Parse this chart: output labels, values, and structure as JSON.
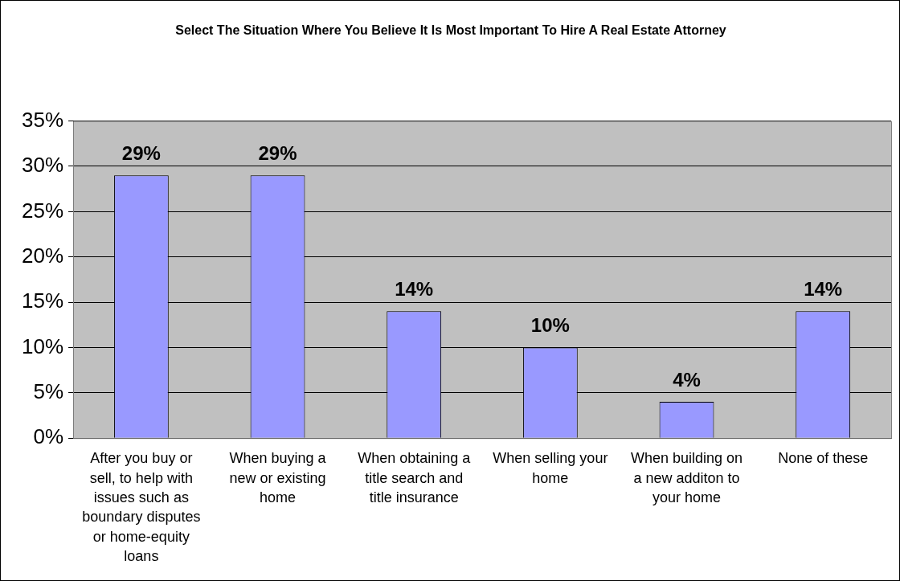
{
  "chart_data": {
    "type": "bar",
    "title": "Select The Situation Where You Believe It Is Most Important To Hire A Real Estate Attorney",
    "categories": [
      "After you buy or sell, to help with issues such as boundary disputes or home-equity loans",
      "When buying a new or existing home",
      "When obtaining a title search and title insurance",
      "When selling your home",
      "When building on a new additon to your home",
      "None of these"
    ],
    "values": [
      29,
      29,
      14,
      10,
      4,
      14
    ],
    "value_labels": [
      "29%",
      "29%",
      "14%",
      "10%",
      "4%",
      "14%"
    ],
    "color": "#9999ff",
    "ylim": [
      0,
      35
    ],
    "yticks": [
      {
        "value": 0,
        "label": "0%"
      },
      {
        "value": 5,
        "label": "5%"
      },
      {
        "value": 10,
        "label": "10%"
      },
      {
        "value": 15,
        "label": "15%"
      },
      {
        "value": 20,
        "label": "20%"
      },
      {
        "value": 25,
        "label": "25%"
      },
      {
        "value": 30,
        "label": "30%"
      },
      {
        "value": 35,
        "label": "35%"
      }
    ],
    "grid": "y",
    "legend": false
  }
}
